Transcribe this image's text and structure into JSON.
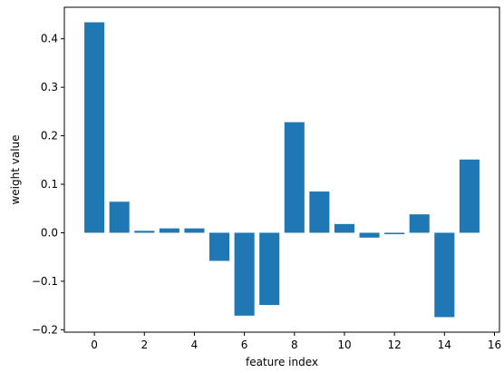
{
  "chart_data": {
    "type": "bar",
    "x": [
      0,
      1,
      2,
      3,
      4,
      5,
      6,
      7,
      8,
      9,
      10,
      11,
      12,
      13,
      14,
      15
    ],
    "values": [
      0.434,
      0.064,
      0.004,
      0.009,
      0.009,
      -0.058,
      -0.171,
      -0.149,
      0.228,
      0.085,
      0.018,
      -0.01,
      -0.003,
      0.038,
      -0.174,
      0.151
    ],
    "xlabel": "feature index",
    "ylabel": "weight value",
    "xlim": [
      -1.2,
      16.2
    ],
    "ylim": [
      -0.205,
      0.465
    ],
    "xticks": [
      0,
      2,
      4,
      6,
      8,
      10,
      12,
      14,
      16
    ],
    "xtick_labels": [
      "0",
      "2",
      "4",
      "6",
      "8",
      "10",
      "12",
      "14",
      "16"
    ],
    "yticks": [
      -0.2,
      -0.1,
      0.0,
      0.1,
      0.2,
      0.3,
      0.4
    ],
    "ytick_labels": [
      "−0.2",
      "−0.1",
      "0.0",
      "0.1",
      "0.2",
      "0.3",
      "0.4"
    ],
    "bar_color": "#1f77b4",
    "grid": false,
    "legend": "none"
  }
}
